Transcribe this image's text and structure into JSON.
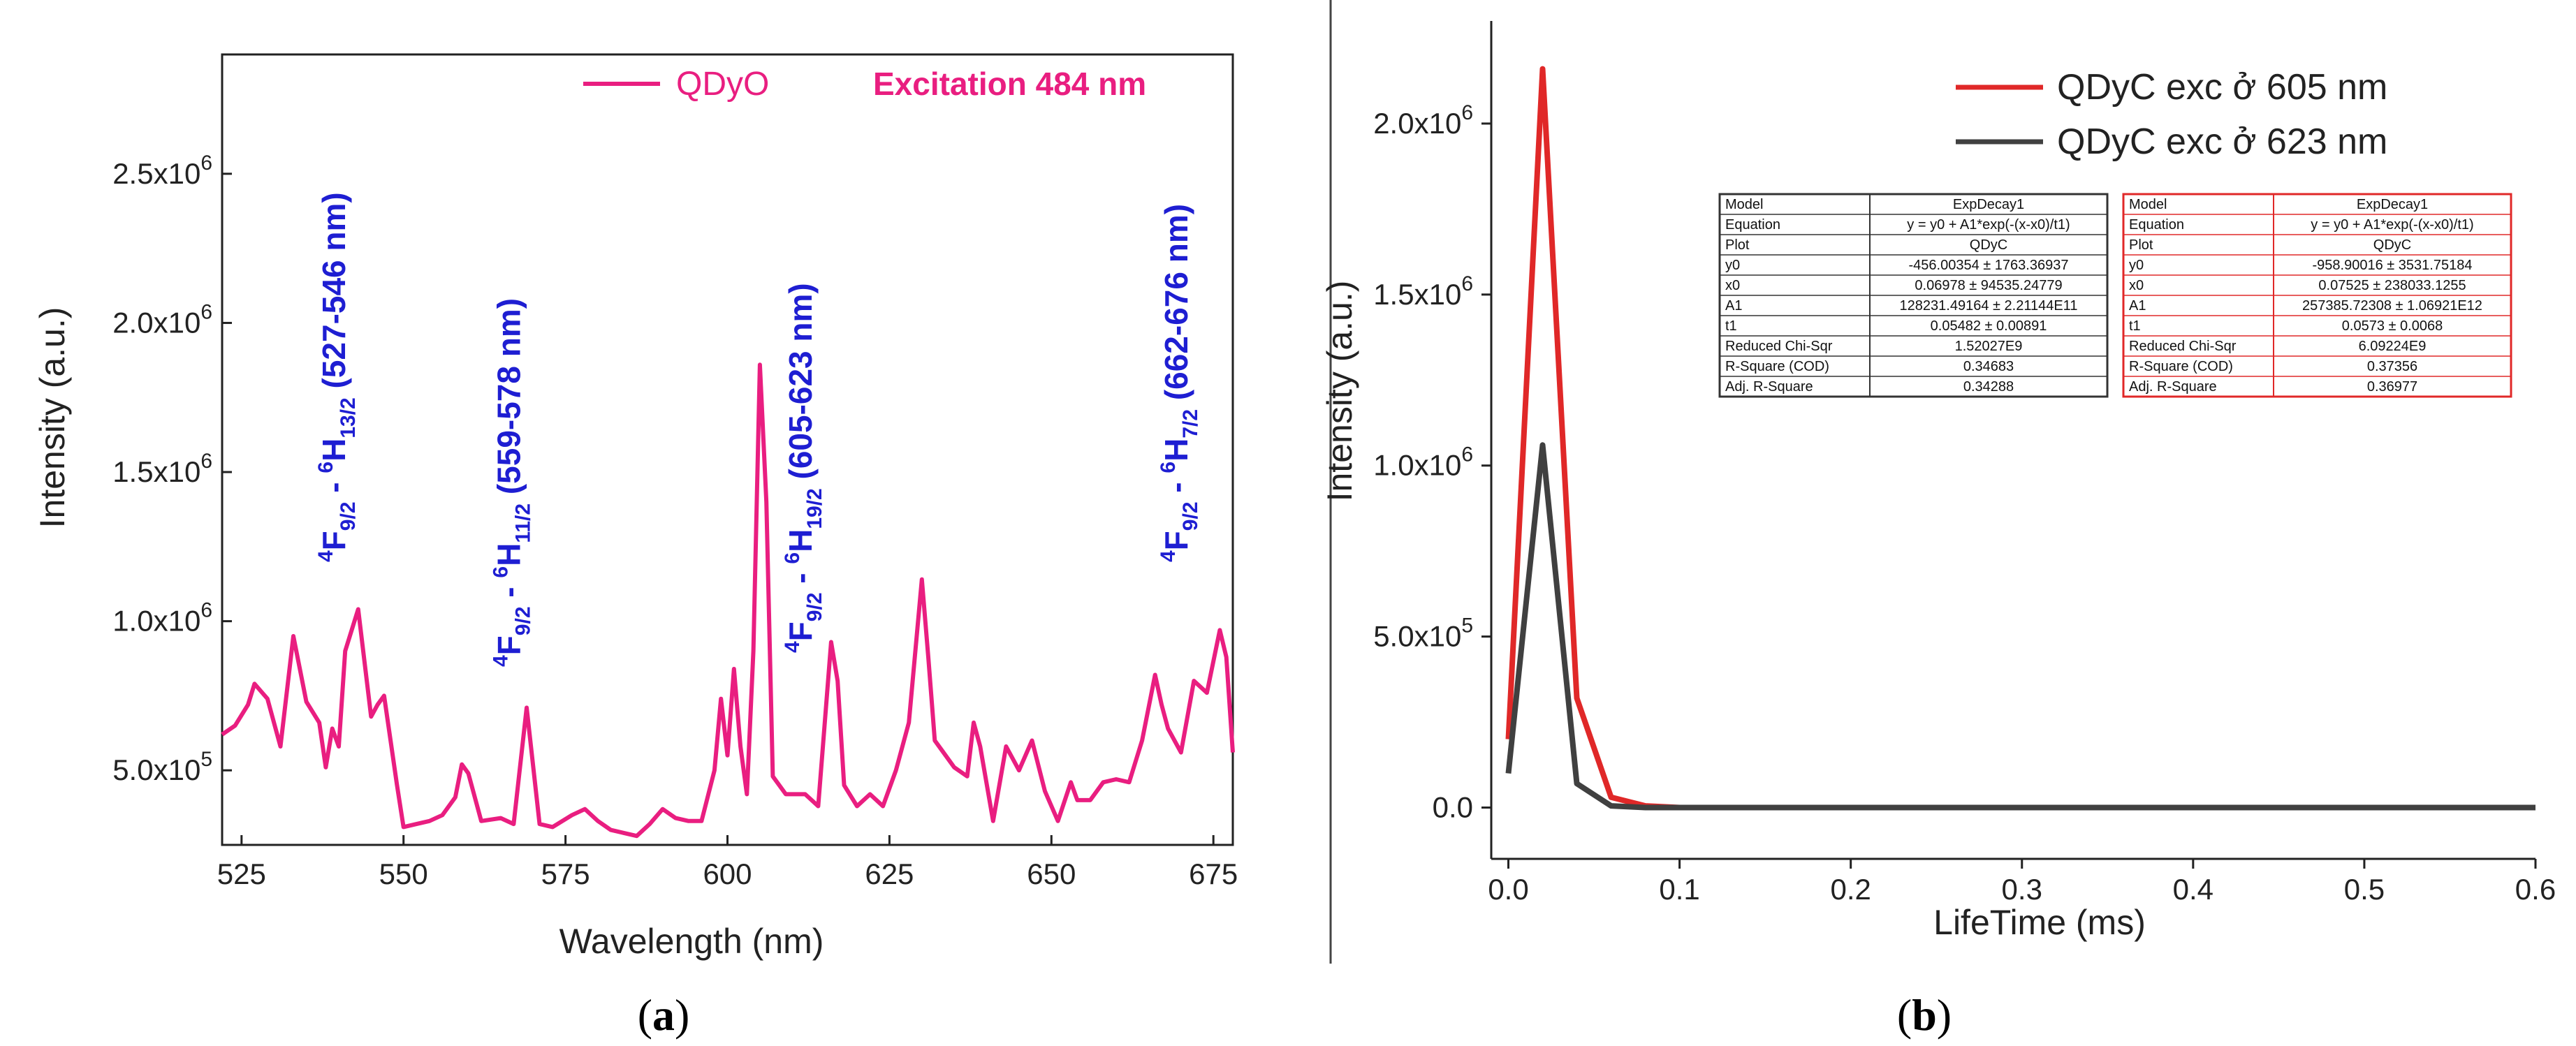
{
  "panel_a": {
    "caption_open": "(",
    "caption_letter": "a",
    "caption_close": ")",
    "legend_label": "QDyO",
    "excitation_label": "Excitation 484 nm",
    "color": "#E91E80",
    "annotation_color": "#1E1ED2",
    "transitions": [
      {
        "upper": "4",
        "f": "F",
        "fsub": "9/2",
        "dash": " - ",
        "lower": "6",
        "h": "H",
        "hsub": "13/2",
        "range": " (527-546 nm)",
        "x": 541
      },
      {
        "upper": "4",
        "f": "F",
        "fsub": "9/2",
        "dash": " - ",
        "lower": "6",
        "h": "H",
        "hsub": "11/2",
        "range": " (559-578 nm)",
        "x": 568
      },
      {
        "upper": "4",
        "f": "F",
        "fsub": "9/2",
        "dash": " - ",
        "lower": "6",
        "h": "H",
        "hsub": "19/2",
        "range": " (605-623 nm)",
        "x": 613
      },
      {
        "upper": "4",
        "f": "F",
        "fsub": "9/2",
        "dash": " - ",
        "lower": "6",
        "h": "H",
        "hsub": "7/2",
        "range": " (662-676 nm)",
        "x": 671
      }
    ]
  },
  "panel_b": {
    "caption_open": "(",
    "caption_letter": "b",
    "caption_close": ")",
    "legend": [
      {
        "label": "QDyC exc ở 605 nm",
        "color": "#E02828"
      },
      {
        "label": "QDyC exc ở 623 nm",
        "color": "#404040"
      }
    ],
    "table_gray": {
      "border": "#333333",
      "rows": [
        [
          "Model",
          "ExpDecay1"
        ],
        [
          "Equation",
          "y = y0 + A1*exp(-(x-x0)/t1)"
        ],
        [
          "Plot",
          "QDyC"
        ],
        [
          "y0",
          "-456.00354 ± 1763.36937"
        ],
        [
          "x0",
          "0.06978 ± 94535.24779"
        ],
        [
          "A1",
          "128231.49164 ± 2.21144E11"
        ],
        [
          "t1",
          "0.05482 ± 0.00891"
        ],
        [
          "Reduced Chi-Sqr",
          "1.52027E9"
        ],
        [
          "R-Square (COD)",
          "0.34683"
        ],
        [
          "Adj. R-Square",
          "0.34288"
        ]
      ]
    },
    "table_red": {
      "border": "#E02828",
      "rows": [
        [
          "Model",
          "ExpDecay1"
        ],
        [
          "Equation",
          "y = y0 + A1*exp(-(x-x0)/t1)"
        ],
        [
          "Plot",
          "QDyC"
        ],
        [
          "y0",
          "-958.90016 ± 3531.75184"
        ],
        [
          "x0",
          "0.07525 ± 238033.1255"
        ],
        [
          "A1",
          "257385.72308 ± 1.06921E12"
        ],
        [
          "t1",
          "0.0573 ± 0.0068"
        ],
        [
          "Reduced Chi-Sqr",
          "6.09224E9"
        ],
        [
          "R-Square (COD)",
          "0.37356"
        ],
        [
          "Adj. R-Square",
          "0.36977"
        ]
      ]
    }
  },
  "chart_data": [
    {
      "type": "line",
      "title": "",
      "xlabel": "Wavelength (nm)",
      "ylabel": "Intensity (a.u.)",
      "xlim": [
        522,
        678
      ],
      "ylim": [
        250000,
        2900000
      ],
      "x_ticks": [
        525,
        550,
        575,
        600,
        625,
        650,
        675
      ],
      "y_ticks": [
        {
          "value": 500000,
          "mant": "5.0x10",
          "exp": "5"
        },
        {
          "value": 1000000,
          "mant": "1.0x10",
          "exp": "6"
        },
        {
          "value": 1500000,
          "mant": "1.5x10",
          "exp": "6"
        },
        {
          "value": 2000000,
          "mant": "2.0x10",
          "exp": "6"
        },
        {
          "value": 2500000,
          "mant": "2.5x10",
          "exp": "6"
        }
      ],
      "series": [
        {
          "name": "QDyO",
          "x": [
            522,
            524,
            526,
            527,
            529,
            531,
            533,
            535,
            537,
            538,
            539,
            540,
            541,
            543,
            545,
            546,
            547,
            549,
            550,
            552,
            554,
            556,
            558,
            559,
            560,
            562,
            565,
            567,
            569,
            571,
            573,
            576,
            578,
            580,
            582,
            584,
            586,
            588,
            590,
            592,
            594,
            596,
            598,
            599,
            600,
            601,
            602,
            603,
            604,
            605,
            606,
            607,
            609,
            612,
            614,
            616,
            617,
            618,
            620,
            622,
            624,
            626,
            628,
            630,
            631,
            632,
            633,
            635,
            637,
            638,
            639,
            641,
            643,
            645,
            647,
            649,
            651,
            653,
            654,
            656,
            658,
            660,
            662,
            664,
            666,
            667,
            668,
            670,
            672,
            674,
            676,
            677,
            678
          ],
          "y": [
            620000,
            650000,
            720000,
            790000,
            740000,
            580000,
            950000,
            730000,
            660000,
            510000,
            640000,
            580000,
            900000,
            1040000,
            680000,
            720000,
            750000,
            450000,
            310000,
            320000,
            330000,
            350000,
            410000,
            520000,
            490000,
            330000,
            340000,
            320000,
            710000,
            320000,
            310000,
            350000,
            370000,
            330000,
            300000,
            290000,
            280000,
            320000,
            370000,
            340000,
            330000,
            330000,
            500000,
            740000,
            550000,
            840000,
            580000,
            420000,
            900000,
            1860000,
            1400000,
            480000,
            420000,
            420000,
            380000,
            930000,
            800000,
            450000,
            380000,
            420000,
            380000,
            500000,
            660000,
            1140000,
            880000,
            600000,
            570000,
            510000,
            480000,
            660000,
            580000,
            330000,
            580000,
            500000,
            600000,
            430000,
            330000,
            460000,
            400000,
            400000,
            460000,
            470000,
            460000,
            600000,
            820000,
            720000,
            640000,
            560000,
            800000,
            760000,
            970000,
            880000,
            560000
          ]
        }
      ]
    },
    {
      "type": "line",
      "title": "",
      "xlabel": "LifeTime (ms)",
      "ylabel": "Intensity (a.u.)",
      "xlim": [
        -0.01,
        0.6
      ],
      "ylim": [
        -150000,
        2300000
      ],
      "x_ticks": [
        0.0,
        0.1,
        0.2,
        0.3,
        0.4,
        0.5,
        0.6
      ],
      "x_tick_labels": [
        "0.0",
        "0.1",
        "0.2",
        "0.3",
        "0.4",
        "0.5",
        "0.6"
      ],
      "y_ticks": [
        {
          "value": 0,
          "mant": "0.0",
          "exp": ""
        },
        {
          "value": 500000,
          "mant": "5.0x10",
          "exp": "5"
        },
        {
          "value": 1000000,
          "mant": "1.0x10",
          "exp": "6"
        },
        {
          "value": 1500000,
          "mant": "1.5x10",
          "exp": "6"
        },
        {
          "value": 2000000,
          "mant": "2.0x10",
          "exp": "6"
        }
      ],
      "series": [
        {
          "name": "QDyC exc ở 605 nm",
          "x": [
            0,
            0.02,
            0.04,
            0.06,
            0.08,
            0.1,
            0.27,
            0.6
          ],
          "y": [
            200000,
            2160000,
            320000,
            30000,
            5000,
            0,
            0,
            0
          ]
        },
        {
          "name": "QDyC exc ở 623 nm",
          "x": [
            0,
            0.02,
            0.04,
            0.06,
            0.08,
            0.1,
            0.6
          ],
          "y": [
            100000,
            1060000,
            70000,
            5000,
            0,
            0,
            0
          ]
        }
      ]
    }
  ]
}
